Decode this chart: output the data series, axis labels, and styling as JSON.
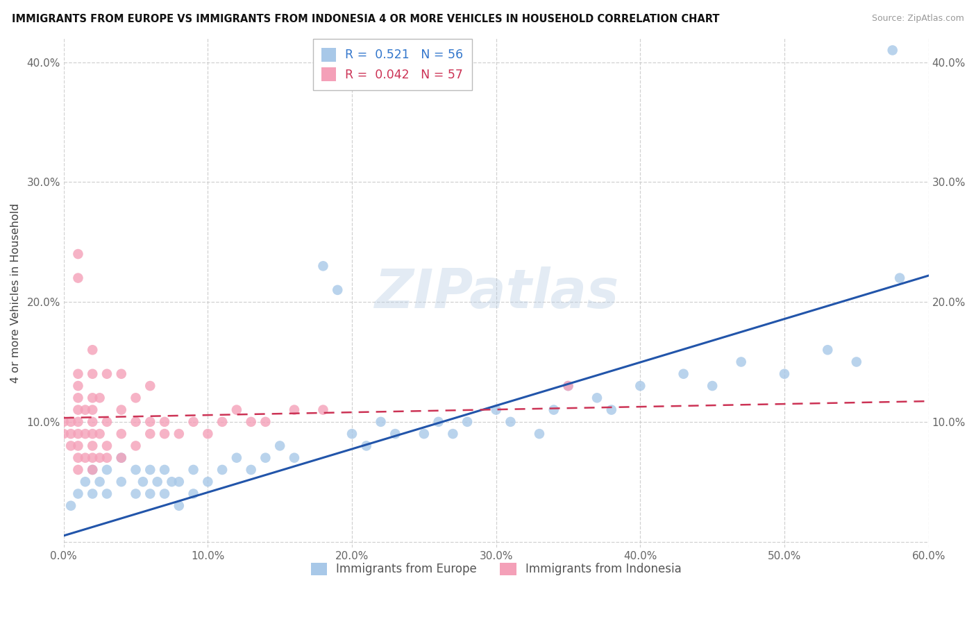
{
  "title": "IMMIGRANTS FROM EUROPE VS IMMIGRANTS FROM INDONESIA 4 OR MORE VEHICLES IN HOUSEHOLD CORRELATION CHART",
  "source": "Source: ZipAtlas.com",
  "ylabel": "4 or more Vehicles in Household",
  "xlim": [
    0.0,
    0.6
  ],
  "ylim": [
    -0.005,
    0.42
  ],
  "xticks": [
    0.0,
    0.1,
    0.2,
    0.3,
    0.4,
    0.5,
    0.6
  ],
  "yticks": [
    0.0,
    0.1,
    0.2,
    0.3,
    0.4
  ],
  "xticklabels": [
    "0.0%",
    "10.0%",
    "20.0%",
    "30.0%",
    "40.0%",
    "50.0%",
    "60.0%"
  ],
  "yticklabels": [
    "",
    "10.0%",
    "20.0%",
    "30.0%",
    "40.0%"
  ],
  "europe_R": 0.521,
  "europe_N": 56,
  "indonesia_R": 0.042,
  "indonesia_N": 57,
  "europe_color": "#a8c8e8",
  "indonesia_color": "#f4a0b8",
  "europe_line_color": "#2255aa",
  "indonesia_line_color": "#cc3355",
  "europe_text_color": "#3377cc",
  "indonesia_text_color": "#cc3355",
  "legend_europe_label": "Immigrants from Europe",
  "legend_indonesia_label": "Immigrants from Indonesia",
  "eu_x": [
    0.005,
    0.01,
    0.015,
    0.02,
    0.02,
    0.025,
    0.03,
    0.03,
    0.04,
    0.04,
    0.05,
    0.05,
    0.055,
    0.06,
    0.06,
    0.065,
    0.07,
    0.07,
    0.075,
    0.08,
    0.08,
    0.09,
    0.09,
    0.1,
    0.11,
    0.12,
    0.13,
    0.14,
    0.15,
    0.16,
    0.18,
    0.19,
    0.2,
    0.21,
    0.22,
    0.23,
    0.25,
    0.26,
    0.27,
    0.28,
    0.3,
    0.31,
    0.33,
    0.34,
    0.35,
    0.37,
    0.38,
    0.4,
    0.43,
    0.45,
    0.47,
    0.5,
    0.53,
    0.55,
    0.58,
    0.575
  ],
  "eu_y": [
    0.03,
    0.04,
    0.05,
    0.04,
    0.06,
    0.05,
    0.04,
    0.06,
    0.05,
    0.07,
    0.04,
    0.06,
    0.05,
    0.04,
    0.06,
    0.05,
    0.04,
    0.06,
    0.05,
    0.03,
    0.05,
    0.04,
    0.06,
    0.05,
    0.06,
    0.07,
    0.06,
    0.07,
    0.08,
    0.07,
    0.23,
    0.21,
    0.09,
    0.08,
    0.1,
    0.09,
    0.09,
    0.1,
    0.09,
    0.1,
    0.11,
    0.1,
    0.09,
    0.11,
    0.13,
    0.12,
    0.11,
    0.13,
    0.14,
    0.13,
    0.15,
    0.14,
    0.16,
    0.15,
    0.22,
    0.41
  ],
  "id_x": [
    0.0,
    0.0,
    0.005,
    0.005,
    0.005,
    0.01,
    0.01,
    0.01,
    0.01,
    0.01,
    0.01,
    0.01,
    0.01,
    0.01,
    0.01,
    0.01,
    0.015,
    0.015,
    0.015,
    0.02,
    0.02,
    0.02,
    0.02,
    0.02,
    0.02,
    0.02,
    0.02,
    0.02,
    0.025,
    0.025,
    0.025,
    0.03,
    0.03,
    0.03,
    0.03,
    0.04,
    0.04,
    0.04,
    0.04,
    0.05,
    0.05,
    0.05,
    0.06,
    0.06,
    0.06,
    0.07,
    0.07,
    0.08,
    0.09,
    0.1,
    0.11,
    0.12,
    0.13,
    0.14,
    0.16,
    0.18,
    0.35
  ],
  "id_y": [
    0.09,
    0.1,
    0.08,
    0.09,
    0.1,
    0.06,
    0.07,
    0.08,
    0.09,
    0.1,
    0.11,
    0.12,
    0.13,
    0.14,
    0.22,
    0.24,
    0.07,
    0.09,
    0.11,
    0.06,
    0.07,
    0.08,
    0.09,
    0.1,
    0.11,
    0.12,
    0.14,
    0.16,
    0.07,
    0.09,
    0.12,
    0.07,
    0.08,
    0.1,
    0.14,
    0.07,
    0.09,
    0.11,
    0.14,
    0.08,
    0.1,
    0.12,
    0.09,
    0.1,
    0.13,
    0.09,
    0.1,
    0.09,
    0.1,
    0.09,
    0.1,
    0.11,
    0.1,
    0.1,
    0.11,
    0.11,
    0.13
  ]
}
